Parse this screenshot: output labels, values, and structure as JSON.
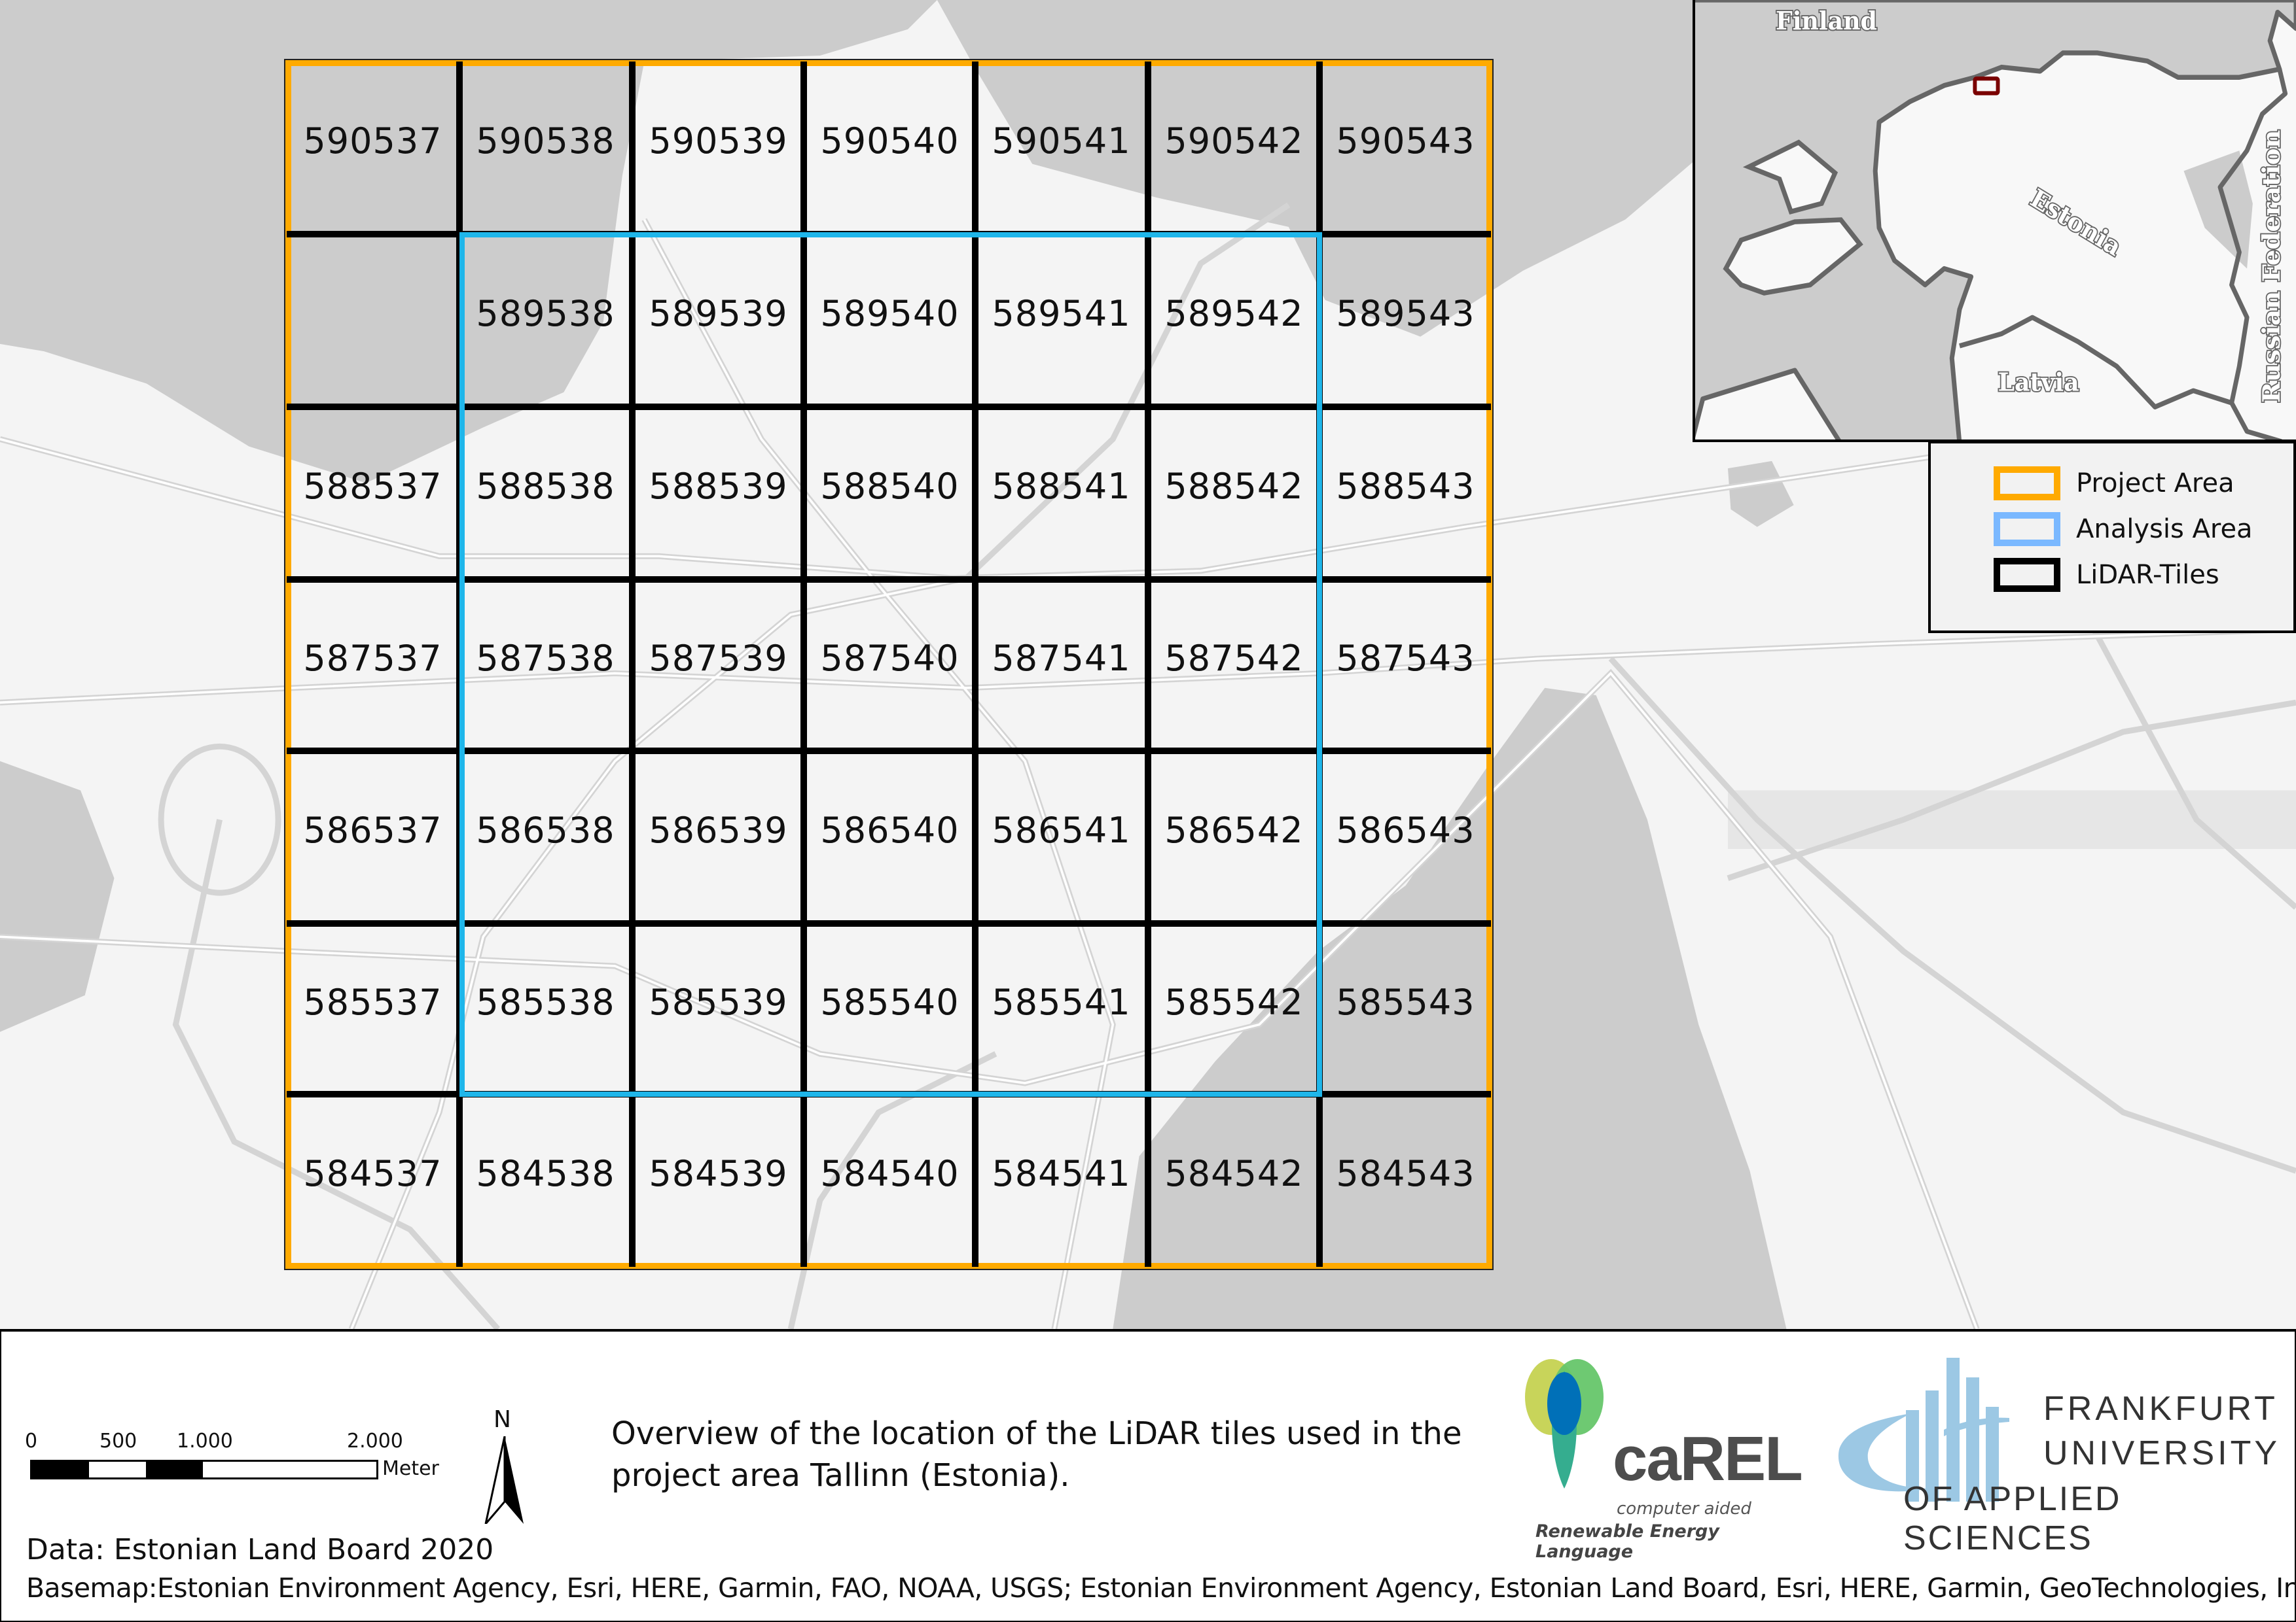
{
  "tiles": [
    [
      "590537",
      "590538",
      "590539",
      "590540",
      "590541",
      "590542",
      "590543"
    ],
    [
      "",
      "589538",
      "589539",
      "589540",
      "589541",
      "589542",
      "589543"
    ],
    [
      "588537",
      "588538",
      "588539",
      "588540",
      "588541",
      "588542",
      "588543"
    ],
    [
      "587537",
      "587538",
      "587539",
      "587540",
      "587541",
      "587542",
      "587543"
    ],
    [
      "586537",
      "586538",
      "586539",
      "586540",
      "586541",
      "586542",
      "586543"
    ],
    [
      "585537",
      "585538",
      "585539",
      "585540",
      "585541",
      "585542",
      "585543"
    ],
    [
      "584537",
      "584538",
      "584539",
      "584540",
      "584541",
      "584542",
      "584543"
    ]
  ],
  "inset": {
    "labels": {
      "finland": "Finland",
      "estonia": "Estonia",
      "latvia": "Latvia",
      "russia": "Russian Federation"
    }
  },
  "legend": {
    "items": [
      {
        "label": "Project Area",
        "color": "#ffaa00"
      },
      {
        "label": "Analysis Area",
        "color": "#7ab8ff"
      },
      {
        "label": "LiDAR-Tiles",
        "color": "#000000"
      }
    ]
  },
  "scale_bar": {
    "ticks": [
      "0",
      "500",
      "1.000",
      "2.000"
    ],
    "unit": "Meter"
  },
  "north_arrow": {
    "label": "N"
  },
  "title": "Overview of the location of the LiDAR tiles used in the project area Tallinn (Estonia).",
  "credits": {
    "data": "Data: Estonian Land Board 2020",
    "basemap": "Basemap:Estonian Environment Agency, Esri, HERE, Garmin, FAO, NOAA, USGS; Estonian Environment Agency, Estonian Land Board, Esri, HERE, Garmin, GeoTechnologies, Inc, METI/"
  },
  "logos": {
    "carel": {
      "name": "caREL",
      "line1": "computer aided",
      "line2": "Renewable Energy Language"
    },
    "frankfurt": {
      "line1": "FRANKFURT",
      "line2": "UNIVERSITY",
      "line3": "OF APPLIED SCIENCES"
    }
  },
  "colors": {
    "project": "#ffaa00",
    "analysis": "#1fb6ea",
    "water": "#cccccc",
    "land": "#f4f4f4"
  }
}
